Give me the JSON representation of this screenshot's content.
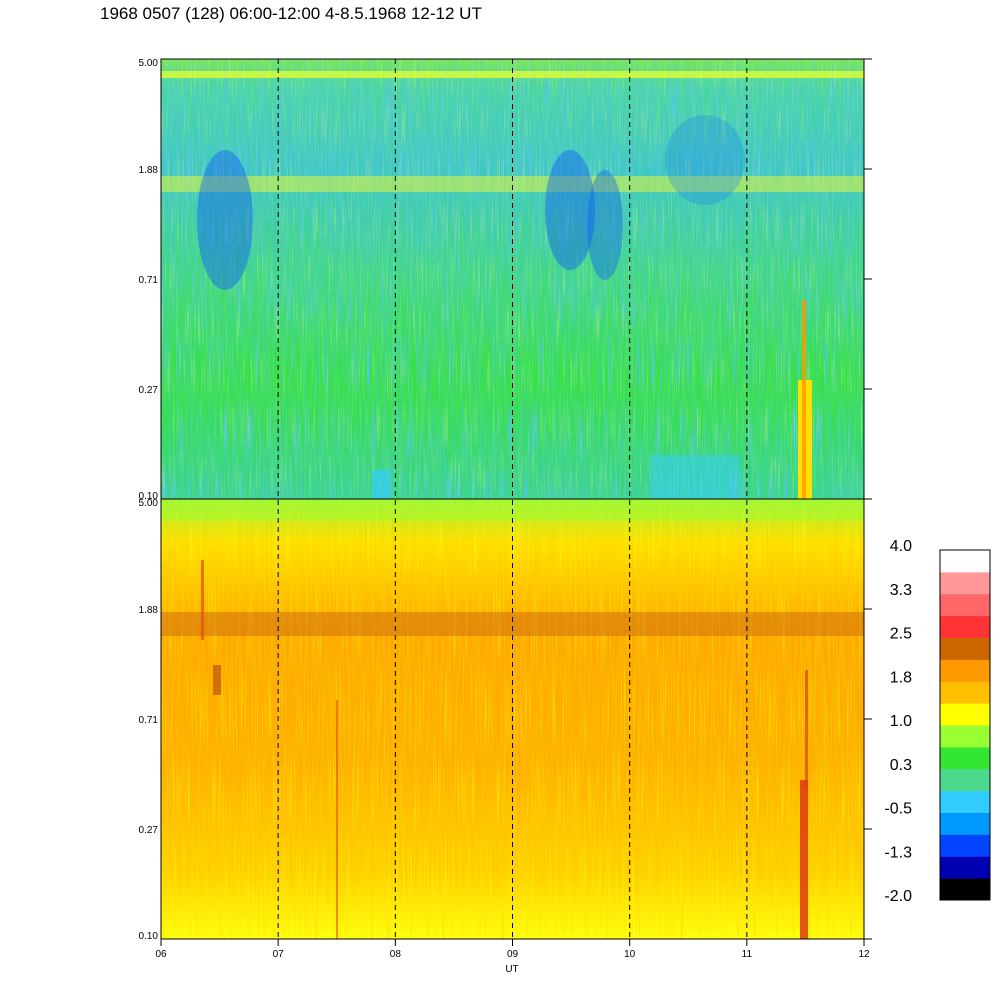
{
  "title": "1968 0507 (128) 06:00-12:00 4-8.5.1968  12-12 UT",
  "chart_data": [
    {
      "type": "heatmap",
      "panel": "top",
      "y_tick_labels": [
        "5.00",
        "1.88",
        "0.71",
        "0.27",
        "0.10"
      ],
      "y_range": [
        0.1,
        5.0
      ],
      "y_scale": "log",
      "x_range": [
        6,
        12
      ],
      "dominant_colors": [
        "#33e633",
        "#4dd98c",
        "#1a66ff",
        "#ffff00"
      ],
      "features": [
        {
          "description_label": "yellow band",
          "y": 1.88,
          "x_range": [
            6,
            12
          ]
        },
        {
          "description_label": "yellow band",
          "y": 4.6,
          "x_range": [
            6,
            12
          ]
        }
      ]
    },
    {
      "type": "heatmap",
      "panel": "bottom",
      "y_tick_labels": [
        "5.00",
        "1.88",
        "0.71",
        "0.27",
        "0.10"
      ],
      "y_range": [
        0.1,
        5.0
      ],
      "y_scale": "log",
      "x_range": [
        6,
        12
      ],
      "x_tick_labels": [
        "06",
        "07",
        "08",
        "09",
        "10",
        "11",
        "12"
      ],
      "x_ticks": [
        6,
        7,
        8,
        9,
        10,
        11,
        12
      ],
      "xlabel": "UT",
      "dominant_colors": [
        "#ffb300",
        "#ff9900",
        "#ffff00",
        "#cc6600"
      ]
    }
  ],
  "dashed_lines_x": [
    7,
    8,
    9,
    10,
    11
  ],
  "colorbar": {
    "labels": [
      "4.0",
      "3.3",
      "2.5",
      "1.8",
      "1.0",
      "0.3",
      "-0.5",
      "-1.3",
      "-2.0"
    ],
    "range": [
      -2.0,
      4.0
    ],
    "colors": [
      "#000000",
      "#0000b3",
      "#0044ff",
      "#0099ff",
      "#33ccff",
      "#4dd98c",
      "#33e633",
      "#99ff33",
      "#ffff00",
      "#ffbf00",
      "#ff9900",
      "#cc6600",
      "#ff3333",
      "#ff6666",
      "#ff9999",
      "#ffffff"
    ]
  }
}
